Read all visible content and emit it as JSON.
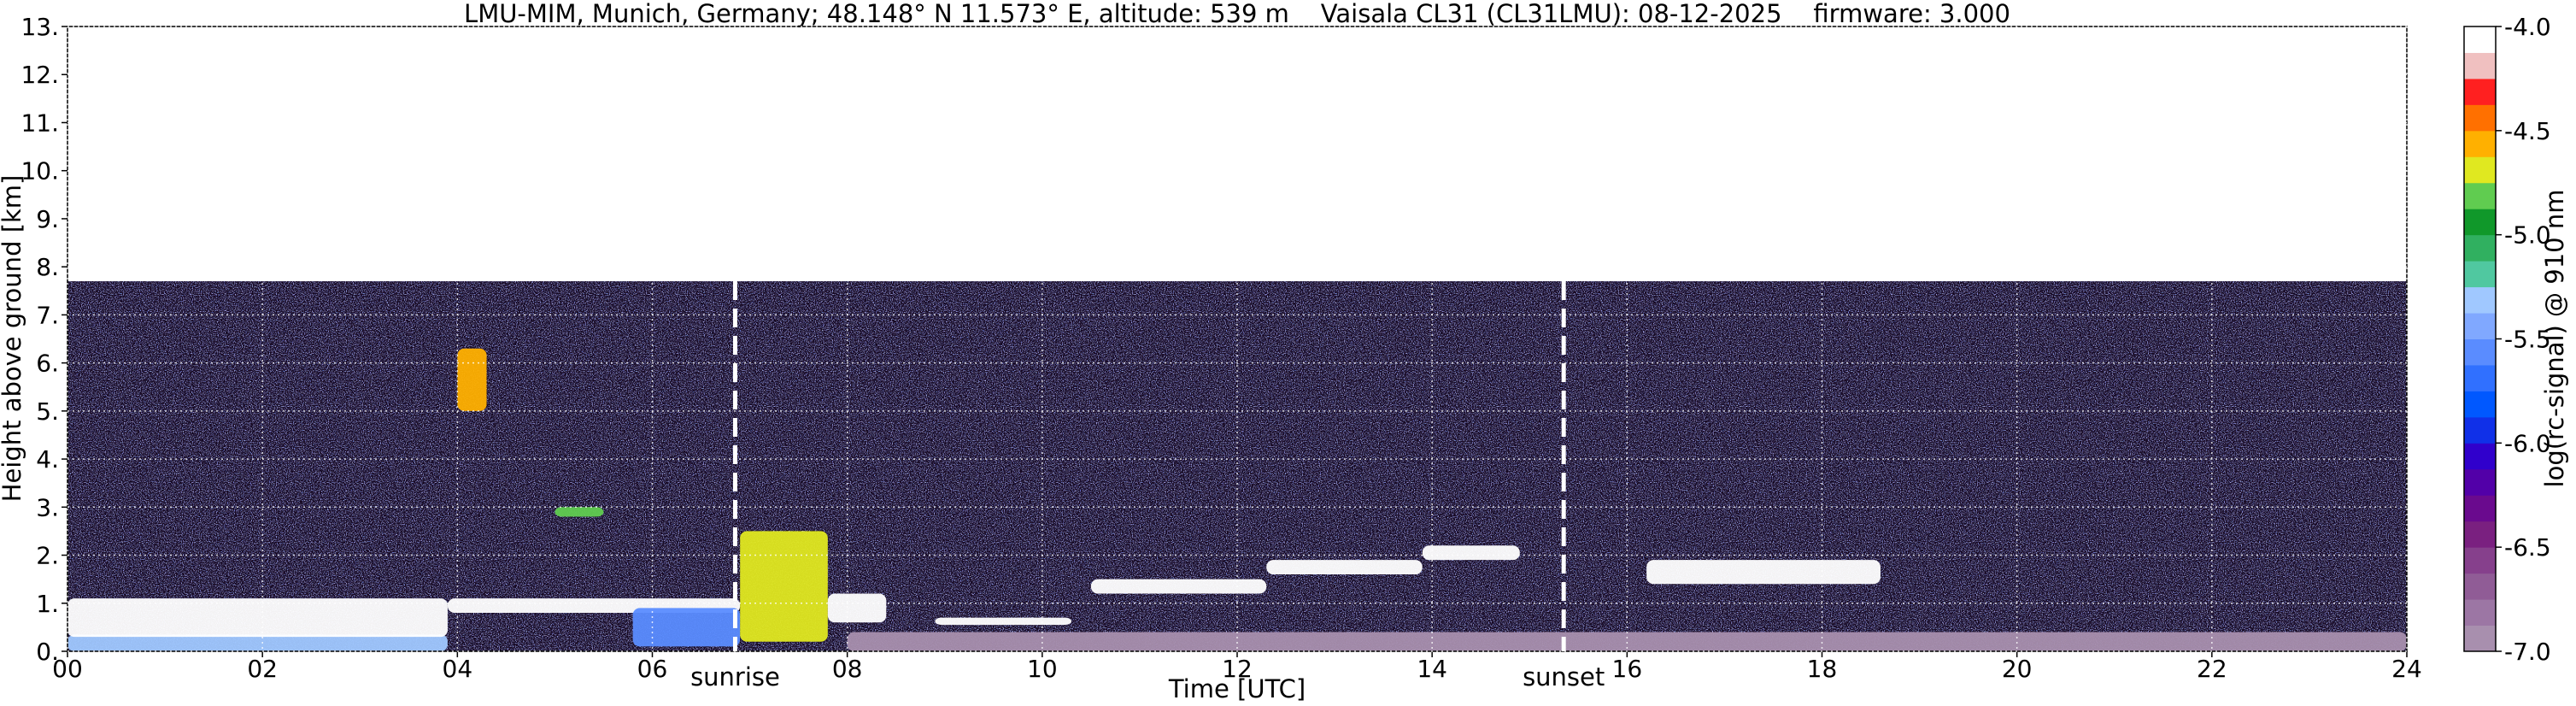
{
  "chart_data": {
    "type": "heatmap",
    "title": "LMU-MIM, Munich, Germany; 48.148° N 11.573° E, altitude: 539 m    Vaisala CL31 (CL31LMU): 08-12-2025    firmware: 3.000",
    "xlabel": "Time [UTC]",
    "ylabel": "Height above ground [km]",
    "colorbar_label": "log(rc-signal) @ 910 nm",
    "xlim": [
      0,
      24
    ],
    "xticks": [
      {
        "value": 0,
        "label": "00"
      },
      {
        "value": 2,
        "label": "02"
      },
      {
        "value": 4,
        "label": "04"
      },
      {
        "value": 6,
        "label": "06"
      },
      {
        "value": 8,
        "label": "08"
      },
      10,
      12,
      14,
      16,
      18,
      20,
      22,
      24
    ],
    "ylim": [
      0,
      13
    ],
    "yticks": [
      {
        "value": 0,
        "label": "0."
      },
      {
        "value": 1,
        "label": "1."
      },
      {
        "value": 2,
        "label": "2."
      },
      {
        "value": 3,
        "label": "3."
      },
      {
        "value": 4,
        "label": "4."
      },
      {
        "value": 5,
        "label": "5."
      },
      {
        "value": 6,
        "label": "6."
      },
      {
        "value": 7,
        "label": "7."
      },
      {
        "value": 8,
        "label": "8."
      },
      {
        "value": 9,
        "label": "9."
      },
      {
        "value": 10,
        "label": "10."
      },
      {
        "value": 11,
        "label": "11."
      },
      {
        "value": 12,
        "label": "12."
      },
      {
        "value": 13,
        "label": "13."
      }
    ],
    "clim": [
      -7,
      -4
    ],
    "cticks": [
      {
        "value": -4,
        "label": "-4.0"
      },
      -4.5,
      {
        "value": -5,
        "label": "-5.0"
      },
      -5.5,
      {
        "value": -6,
        "label": "-6.0"
      },
      -6.5,
      {
        "value": -7,
        "label": "-7.0"
      }
    ],
    "colormap": [
      "#a88fae",
      "#9c76a4",
      "#905c96",
      "#86408c",
      "#7a2080",
      "#6a0a8e",
      "#5200a8",
      "#3000cc",
      "#1030e8",
      "#0058ff",
      "#3070ff",
      "#5a8cff",
      "#80a8ff",
      "#a0c8ff",
      "#50c8a0",
      "#30b060",
      "#10982a",
      "#60cc50",
      "#e0e820",
      "#ffb000",
      "#ff7000",
      "#ff2020",
      "#f0c0c0",
      "#ffffff"
    ],
    "grid": true,
    "markers": [
      {
        "x": 6.85,
        "label": "sunrise"
      },
      {
        "x": 15.35,
        "label": "sunset"
      }
    ],
    "features": [
      {
        "x": [
          0,
          24
        ],
        "y": [
          0,
          7.7
        ],
        "value": -6.3,
        "texture": "noise"
      },
      {
        "x": [
          8,
          24
        ],
        "y": [
          0,
          0.4
        ],
        "value": -6.9
      },
      {
        "x": [
          0,
          3.9
        ],
        "y": [
          0,
          0.35
        ],
        "value": -5.3
      },
      {
        "x": [
          0,
          3.9
        ],
        "y": [
          0.3,
          1.1
        ],
        "value": -4.0
      },
      {
        "x": [
          3.9,
          6.9
        ],
        "y": [
          0.8,
          1.1
        ],
        "value": -4.0
      },
      {
        "x": [
          5.8,
          6.9
        ],
        "y": [
          0.1,
          0.9
        ],
        "value": -5.6
      },
      {
        "x": [
          6.9,
          7.8
        ],
        "y": [
          0.2,
          2.5
        ],
        "value": -4.7
      },
      {
        "x": [
          7.8,
          8.4
        ],
        "y": [
          0.6,
          1.2
        ],
        "value": -4.0
      },
      {
        "x": [
          8.9,
          10.3
        ],
        "y": [
          0.55,
          0.7
        ],
        "value": -4.0
      },
      {
        "x": [
          10.5,
          12.3
        ],
        "y": [
          1.2,
          1.5
        ],
        "value": -4.0
      },
      {
        "x": [
          12.3,
          13.9
        ],
        "y": [
          1.6,
          1.9
        ],
        "value": -4.0
      },
      {
        "x": [
          13.9,
          14.9
        ],
        "y": [
          1.9,
          2.2
        ],
        "value": -4.0
      },
      {
        "x": [
          16.2,
          18.6
        ],
        "y": [
          1.4,
          1.9
        ],
        "value": -4.0
      },
      {
        "x": [
          4.0,
          4.3
        ],
        "y": [
          5.0,
          6.3
        ],
        "value": -4.6
      },
      {
        "x": [
          5.0,
          5.5
        ],
        "y": [
          2.8,
          3.0
        ],
        "value": -4.8
      }
    ]
  }
}
